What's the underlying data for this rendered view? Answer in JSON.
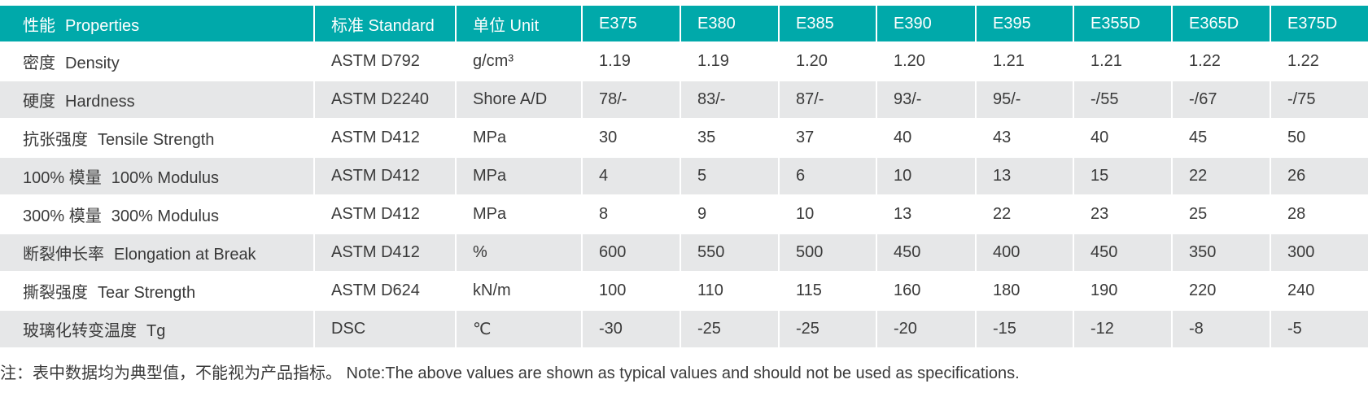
{
  "header": {
    "property_cn": "性能",
    "property_en": "Properties",
    "standard": "标准 Standard",
    "unit": "单位 Unit",
    "grades": [
      "E375",
      "E380",
      "E385",
      "E390",
      "E395",
      "E355D",
      "E365D",
      "E375D"
    ]
  },
  "table": {
    "rows": [
      {
        "property_cn": "密度",
        "property_en": "Density",
        "standard": "ASTM D792",
        "unit": "g/cm³",
        "values": [
          "1.19",
          "1.19",
          "1.20",
          "1.20",
          "1.21",
          "1.21",
          "1.22",
          "1.22"
        ]
      },
      {
        "property_cn": "硬度",
        "property_en": "Hardness",
        "standard": "ASTM D2240",
        "unit": "Shore A/D",
        "values": [
          "78/-",
          "83/-",
          "87/-",
          "93/-",
          "95/-",
          "-/55",
          "-/67",
          "-/75"
        ]
      },
      {
        "property_cn": "抗张强度",
        "property_en": "Tensile Strength",
        "standard": "ASTM D412",
        "unit": "MPa",
        "values": [
          "30",
          "35",
          "37",
          "40",
          "43",
          "40",
          "45",
          "50"
        ]
      },
      {
        "property_cn": "100% 模量",
        "property_en": "100% Modulus",
        "standard": "ASTM D412",
        "unit": "MPa",
        "values": [
          "4",
          "5",
          "6",
          "10",
          "13",
          "15",
          "22",
          "26"
        ]
      },
      {
        "property_cn": "300% 模量",
        "property_en": "300% Modulus",
        "standard": "ASTM D412",
        "unit": "MPa",
        "values": [
          "8",
          "9",
          "10",
          "13",
          "22",
          "23",
          "25",
          "28"
        ]
      },
      {
        "property_cn": "断裂伸长率",
        "property_en": "Elongation at Break",
        "standard": "ASTM D412",
        "unit": "%",
        "values": [
          "600",
          "550",
          "500",
          "450",
          "400",
          "450",
          "350",
          "300"
        ]
      },
      {
        "property_cn": "撕裂强度",
        "property_en": "Tear Strength",
        "standard": "ASTM D624",
        "unit": "kN/m",
        "values": [
          "100",
          "110",
          "115",
          "160",
          "180",
          "190",
          "220",
          "240"
        ]
      },
      {
        "property_cn": "玻璃化转变温度",
        "property_en": "Tg",
        "standard": "DSC",
        "unit": "℃",
        "values": [
          "-30",
          "-25",
          "-25",
          "-20",
          "-15",
          "-12",
          "-8",
          "-5"
        ]
      }
    ]
  },
  "note": "注：表中数据均为典型值，不能视为产品指标。 Note:The above values are shown as typical values and should not be used as specifications."
}
